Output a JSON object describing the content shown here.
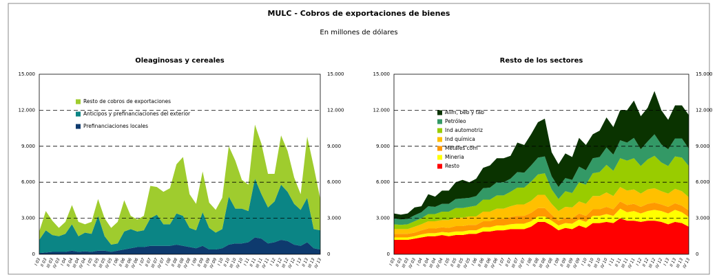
{
  "title": "MULC - Cobros de exportaciones de bienes",
  "subtitle": "En millones de dólares",
  "chart_data": [
    {
      "type": "stacked_area",
      "title": "Oleaginosas y cereales",
      "categories": [
        "I 03",
        "II 03",
        "III 03",
        "IV 03",
        "I 04",
        "II 04",
        "III 04",
        "IV 04",
        "I 05",
        "II 05",
        "III 05",
        "IV 05",
        "I 06",
        "II 06",
        "III 06",
        "IV 06",
        "I 07",
        "II 07",
        "III 07",
        "IV 07",
        "I 08",
        "II 08",
        "III 08",
        "IV 08",
        "I 09",
        "II 09",
        "III 09",
        "IV 09",
        "I 10",
        "II 10",
        "III 10",
        "IV 10",
        "I 11",
        "II 11",
        "III 11",
        "IV 11",
        "I 12",
        "II 12",
        "III 12",
        "IV 12",
        "I 13",
        "II 13",
        "III 13",
        "IV 13"
      ],
      "series": [
        {
          "name": "Prefinanciaciones locales",
          "color": "#0e3a6e",
          "values": [
            100,
            150,
            200,
            200,
            200,
            300,
            200,
            250,
            200,
            300,
            300,
            200,
            300,
            400,
            500,
            600,
            600,
            700,
            700,
            700,
            700,
            800,
            700,
            600,
            500,
            700,
            400,
            400,
            500,
            800,
            900,
            900,
            1000,
            1400,
            1300,
            900,
            1000,
            1200,
            1100,
            800,
            700,
            1000,
            500,
            400
          ]
        },
        {
          "name": "Anticipos y prefinanciaciones del exterior",
          "color": "#0b8585",
          "values": [
            1100,
            1850,
            1400,
            1300,
            1500,
            2200,
            1300,
            1550,
            1500,
            2900,
            1200,
            600,
            600,
            1500,
            1600,
            1300,
            1400,
            2300,
            2600,
            1800,
            1800,
            2600,
            2500,
            1600,
            1500,
            2800,
            1800,
            1400,
            1600,
            4000,
            2900,
            2900,
            2600,
            4900,
            3700,
            3000,
            3400,
            4600,
            4100,
            3400,
            3000,
            3700,
            1600,
            1600
          ]
        },
        {
          "name": "Resto de cobros de exportaciones",
          "color": "#9fcc2e",
          "values": [
            700,
            1600,
            1200,
            700,
            1000,
            1600,
            1200,
            700,
            1000,
            1400,
            1500,
            1400,
            1800,
            2600,
            1100,
            1000,
            1200,
            2700,
            2300,
            2700,
            3000,
            4100,
            4900,
            2800,
            2200,
            3400,
            2100,
            1900,
            2600,
            4200,
            4000,
            2400,
            2200,
            4500,
            4200,
            2800,
            2300,
            4100,
            3400,
            2200,
            1300,
            5100,
            5200,
            2600
          ]
        }
      ],
      "ylim": [
        0,
        15000
      ],
      "yticks": [
        0,
        {
          "value": 3000,
          "label": "3.000"
        },
        {
          "value": 6000,
          "label": "6.000"
        },
        {
          "value": 9000,
          "label": "9.000"
        },
        {
          "value": 12000,
          "label": "12.000"
        },
        {
          "value": 15000,
          "label": "15.000"
        }
      ],
      "y2lim": [
        0,
        15000
      ],
      "y2ticks": [
        0,
        {
          "value": 3000,
          "label": "3.000"
        },
        {
          "value": 6000,
          "label": "6.000"
        },
        {
          "value": 9000,
          "label": "9.000"
        },
        {
          "value": 12000,
          "label": "12.000"
        },
        {
          "value": 15000,
          "label": "15.000"
        }
      ],
      "grid": true,
      "legend": "upper left"
    },
    {
      "type": "stacked_area",
      "title": "Resto de los sectores",
      "categories": [
        "I 03",
        "II 03",
        "III 03",
        "IV 03",
        "I 04",
        "II 04",
        "III 04",
        "IV 04",
        "I 05",
        "II 05",
        "III 05",
        "IV 05",
        "I 06",
        "II 06",
        "III 06",
        "IV 06",
        "I 07",
        "II 07",
        "III 07",
        "IV 07",
        "I 08",
        "II 08",
        "III 08",
        "IV 08",
        "I 09",
        "II 09",
        "III 09",
        "IV 09",
        "I 10",
        "II 10",
        "III 10",
        "IV 10",
        "I 11",
        "II 11",
        "III 11",
        "IV 11",
        "I 12",
        "II 12",
        "III 12",
        "IV 12",
        "I 13",
        "II 13",
        "III 13",
        "IV 13"
      ],
      "series": [
        {
          "name": "Resto",
          "color": "#ff0000",
          "values": [
            1200,
            1200,
            1200,
            1300,
            1400,
            1500,
            1500,
            1600,
            1500,
            1600,
            1600,
            1700,
            1700,
            1900,
            1900,
            2000,
            2000,
            2100,
            2100,
            2100,
            2300,
            2700,
            2700,
            2400,
            2000,
            2200,
            2100,
            2400,
            2200,
            2600,
            2600,
            2700,
            2600,
            3000,
            2800,
            2800,
            2700,
            2800,
            2800,
            2700,
            2500,
            2700,
            2600,
            2300
          ]
        },
        {
          "name": "Mineria",
          "color": "#ffff00",
          "values": [
            200,
            200,
            200,
            200,
            250,
            250,
            250,
            250,
            300,
            300,
            300,
            300,
            300,
            350,
            350,
            400,
            400,
            400,
            450,
            450,
            450,
            450,
            450,
            400,
            400,
            400,
            450,
            500,
            500,
            600,
            600,
            650,
            600,
            800,
            700,
            800,
            700,
            800,
            900,
            900,
            900,
            1000,
            900,
            800
          ]
        },
        {
          "name": "Metales com",
          "color": "#ff9900",
          "values": [
            300,
            300,
            300,
            300,
            350,
            400,
            400,
            400,
            400,
            450,
            450,
            450,
            450,
            500,
            500,
            550,
            550,
            600,
            650,
            650,
            700,
            700,
            700,
            500,
            400,
            450,
            450,
            500,
            500,
            550,
            550,
            600,
            550,
            600,
            600,
            600,
            550,
            600,
            600,
            550,
            550,
            550,
            550,
            550
          ]
        },
        {
          "name": "Ind química",
          "color": "#ffc000",
          "values": [
            400,
            400,
            400,
            500,
            500,
            600,
            600,
            600,
            650,
            700,
            700,
            700,
            700,
            800,
            800,
            850,
            850,
            900,
            950,
            950,
            1000,
            1100,
            1100,
            900,
            800,
            900,
            900,
            1000,
            1000,
            1100,
            1100,
            1200,
            1100,
            1200,
            1200,
            1200,
            1100,
            1200,
            1200,
            1100,
            1100,
            1200,
            1200,
            1100
          ]
        },
        {
          "name": "Ind automotriz",
          "color": "#99cc00",
          "values": [
            400,
            350,
            400,
            450,
            500,
            600,
            600,
            700,
            700,
            800,
            800,
            800,
            900,
            1000,
            1000,
            1100,
            1100,
            1200,
            1400,
            1400,
            1600,
            1700,
            1800,
            1200,
            1000,
            1300,
            1200,
            1600,
            1600,
            1900,
            2000,
            2300,
            2100,
            2400,
            2500,
            2600,
            2300,
            2500,
            2700,
            2400,
            2300,
            2700,
            2800,
            2600
          ]
        },
        {
          "name": "Petróleo",
          "color": "#339966",
          "values": [
            500,
            450,
            450,
            500,
            500,
            650,
            600,
            650,
            650,
            750,
            800,
            750,
            800,
            950,
            1000,
            1100,
            1100,
            1100,
            1300,
            1250,
            1350,
            1400,
            1400,
            1100,
            1000,
            1100,
            1100,
            1300,
            1200,
            1250,
            1250,
            1450,
            1350,
            1500,
            1500,
            1700,
            1400,
            1500,
            1800,
            1500,
            1400,
            1500,
            1600,
            1450
          ]
        },
        {
          "name": "Alim, beb y tab",
          "color": "#0a3300",
          "values": [
            400,
            400,
            450,
            650,
            500,
            1000,
            850,
            1100,
            1100,
            1400,
            1550,
            1300,
            1450,
            1700,
            1850,
            2000,
            2000,
            1900,
            2450,
            2300,
            2600,
            2950,
            3150,
            2000,
            1900,
            2050,
            1900,
            2400,
            2100,
            2000,
            2200,
            2500,
            2300,
            2500,
            2700,
            3100,
            2750,
            2800,
            3600,
            2850,
            2450,
            2750,
            2750,
            2800
          ]
        }
      ],
      "ylim": [
        0,
        15000
      ],
      "yticks": [
        0,
        {
          "value": 3000,
          "label": "3.000"
        },
        {
          "value": 6000,
          "label": "6.000"
        },
        {
          "value": 9000,
          "label": "9.000"
        },
        {
          "value": 12000,
          "label": "12.000"
        },
        {
          "value": 15000,
          "label": "15.000"
        }
      ],
      "y2lim": [
        0,
        15000
      ],
      "y2ticks": [
        0,
        {
          "value": 3000,
          "label": "3.000"
        },
        {
          "value": 6000,
          "label": "6.000"
        },
        {
          "value": 9000,
          "label": "9.000"
        },
        {
          "value": 12000,
          "label": "12.000"
        },
        {
          "value": 15000,
          "label": "15.000"
        }
      ],
      "grid": true,
      "legend": "upper left"
    }
  ]
}
